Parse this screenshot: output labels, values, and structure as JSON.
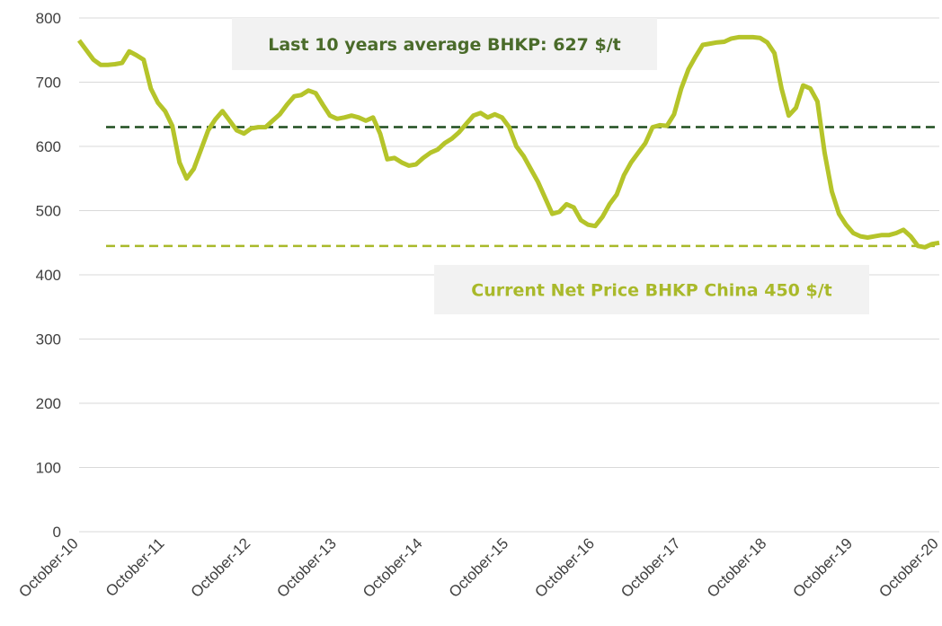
{
  "chart_data": {
    "type": "line",
    "categories": [
      "October-10",
      null,
      null,
      null,
      null,
      null,
      null,
      null,
      null,
      null,
      null,
      null,
      "October-11",
      null,
      null,
      null,
      null,
      null,
      null,
      null,
      null,
      null,
      null,
      null,
      "October-12",
      null,
      null,
      null,
      null,
      null,
      null,
      null,
      null,
      null,
      null,
      null,
      "October-13",
      null,
      null,
      null,
      null,
      null,
      null,
      null,
      null,
      null,
      null,
      null,
      "October-14",
      null,
      null,
      null,
      null,
      null,
      null,
      null,
      null,
      null,
      null,
      null,
      "October-15",
      null,
      null,
      null,
      null,
      null,
      null,
      null,
      null,
      null,
      null,
      null,
      "October-16",
      null,
      null,
      null,
      null,
      null,
      null,
      null,
      null,
      null,
      null,
      null,
      "October-17",
      null,
      null,
      null,
      null,
      null,
      null,
      null,
      null,
      null,
      null,
      null,
      "October-18",
      null,
      null,
      null,
      null,
      null,
      null,
      null,
      null,
      null,
      null,
      null,
      "October-19",
      null,
      null,
      null,
      null,
      null,
      null,
      null,
      null,
      null,
      null,
      null,
      "October-20"
    ],
    "values": [
      765,
      750,
      735,
      727,
      727,
      728,
      730,
      748,
      742,
      735,
      690,
      668,
      655,
      632,
      575,
      550,
      565,
      595,
      625,
      642,
      655,
      640,
      625,
      620,
      628,
      630,
      630,
      640,
      650,
      665,
      678,
      680,
      687,
      683,
      665,
      648,
      643,
      645,
      648,
      645,
      640,
      645,
      620,
      580,
      582,
      575,
      570,
      572,
      582,
      590,
      595,
      605,
      612,
      622,
      635,
      648,
      652,
      645,
      650,
      645,
      630,
      600,
      585,
      565,
      545,
      520,
      495,
      498,
      510,
      505,
      485,
      478,
      476,
      490,
      510,
      525,
      555,
      575,
      590,
      605,
      630,
      633,
      632,
      650,
      690,
      720,
      740,
      758,
      760,
      762,
      763,
      768,
      770,
      770,
      770,
      769,
      762,
      745,
      690,
      648,
      660,
      695,
      690,
      670,
      590,
      530,
      495,
      478,
      465,
      460,
      458,
      460,
      462,
      462,
      465,
      470,
      460,
      445,
      443,
      448,
      450
    ],
    "color": "#b5c42a",
    "ylim": [
      0,
      800
    ],
    "yticks": [
      0,
      100,
      200,
      300,
      400,
      500,
      600,
      700,
      800
    ],
    "grid": true,
    "reference_lines": [
      {
        "value": 630,
        "color": "#1e4d1e"
      },
      {
        "value": 445,
        "color": "#a9b92a"
      }
    ],
    "annotations": [
      {
        "text": "Last 10 years average BHKP: 627 $/t",
        "color": "#4a6b2a"
      },
      {
        "text": "Current Net Price BHKP China 450 $/t",
        "color": "#a9b92a"
      }
    ]
  }
}
